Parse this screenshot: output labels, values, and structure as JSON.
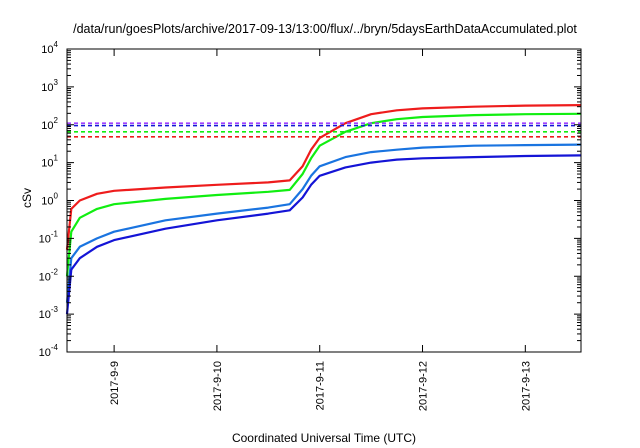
{
  "chart_data": {
    "type": "line",
    "title": "/data/run/goesPlots/archive/2017-09-13/13:00/flux/../bryn/5daysEarthDataAccumulated.plot",
    "xlabel": "Coordinated Universal Time (UTC)",
    "ylabel": "cSv",
    "yscale": "log",
    "ylim": [
      0.0001,
      10000
    ],
    "xlim": [
      "2017-09-08 13:00",
      "2017-09-13 13:00"
    ],
    "x_ticks": [
      "2017-9-9",
      "2017-9-10",
      "2017-9-11",
      "2017-9-12",
      "2017-9-13"
    ],
    "y_ticks": [
      {
        "value": 0.0001,
        "base": "10",
        "exp": "-4"
      },
      {
        "value": 0.001,
        "base": "10",
        "exp": "-3"
      },
      {
        "value": 0.01,
        "base": "10",
        "exp": "-2"
      },
      {
        "value": 0.1,
        "base": "10",
        "exp": "-1"
      },
      {
        "value": 1,
        "base": "10",
        "exp": "0"
      },
      {
        "value": 10,
        "base": "10",
        "exp": "1"
      },
      {
        "value": 100,
        "base": "10",
        "exp": "2"
      },
      {
        "value": 1000,
        "base": "10",
        "exp": "3"
      },
      {
        "value": 10000,
        "base": "10",
        "exp": "4"
      }
    ],
    "grid": false,
    "legend": "none",
    "series": [
      {
        "color": "#ee1c1c",
        "style": "solid",
        "points": [
          [
            "2017-09-08 13:00",
            0.05
          ],
          [
            "2017-09-08 14:00",
            0.6
          ],
          [
            "2017-09-08 16:00",
            1.0
          ],
          [
            "2017-09-08 20:00",
            1.5
          ],
          [
            "2017-09-09 00:00",
            1.8
          ],
          [
            "2017-09-09 12:00",
            2.2
          ],
          [
            "2017-09-10 00:00",
            2.6
          ],
          [
            "2017-09-10 12:00",
            3.0
          ],
          [
            "2017-09-10 17:00",
            3.4
          ],
          [
            "2017-09-10 20:00",
            8.0
          ],
          [
            "2017-09-10 22:00",
            22
          ],
          [
            "2017-09-11 00:00",
            45
          ],
          [
            "2017-09-11 06:00",
            110
          ],
          [
            "2017-09-11 12:00",
            190
          ],
          [
            "2017-09-11 18:00",
            240
          ],
          [
            "2017-09-12 00:00",
            270
          ],
          [
            "2017-09-12 12:00",
            300
          ],
          [
            "2017-09-13 00:00",
            320
          ],
          [
            "2017-09-13 13:00",
            330
          ]
        ]
      },
      {
        "color": "#11ee11",
        "style": "solid",
        "points": [
          [
            "2017-09-08 13:00",
            0.01
          ],
          [
            "2017-09-08 14:00",
            0.15
          ],
          [
            "2017-09-08 16:00",
            0.35
          ],
          [
            "2017-09-08 20:00",
            0.6
          ],
          [
            "2017-09-09 00:00",
            0.8
          ],
          [
            "2017-09-09 12:00",
            1.1
          ],
          [
            "2017-09-10 00:00",
            1.4
          ],
          [
            "2017-09-10 12:00",
            1.7
          ],
          [
            "2017-09-10 17:00",
            1.9
          ],
          [
            "2017-09-10 20:00",
            5.0
          ],
          [
            "2017-09-10 22:00",
            13
          ],
          [
            "2017-09-11 00:00",
            28
          ],
          [
            "2017-09-11 06:00",
            65
          ],
          [
            "2017-09-11 12:00",
            110
          ],
          [
            "2017-09-11 18:00",
            140
          ],
          [
            "2017-09-12 00:00",
            160
          ],
          [
            "2017-09-12 12:00",
            180
          ],
          [
            "2017-09-13 00:00",
            190
          ],
          [
            "2017-09-13 13:00",
            195
          ]
        ]
      },
      {
        "color": "#1a74e0",
        "style": "solid",
        "points": [
          [
            "2017-09-08 13:00",
            0.002
          ],
          [
            "2017-09-08 14:00",
            0.03
          ],
          [
            "2017-09-08 16:00",
            0.06
          ],
          [
            "2017-09-08 20:00",
            0.1
          ],
          [
            "2017-09-09 00:00",
            0.15
          ],
          [
            "2017-09-09 12:00",
            0.3
          ],
          [
            "2017-09-10 00:00",
            0.45
          ],
          [
            "2017-09-10 12:00",
            0.65
          ],
          [
            "2017-09-10 17:00",
            0.8
          ],
          [
            "2017-09-10 20:00",
            2.0
          ],
          [
            "2017-09-10 22:00",
            4.5
          ],
          [
            "2017-09-11 00:00",
            8.0
          ],
          [
            "2017-09-11 06:00",
            14
          ],
          [
            "2017-09-11 12:00",
            19
          ],
          [
            "2017-09-11 18:00",
            22
          ],
          [
            "2017-09-12 00:00",
            25
          ],
          [
            "2017-09-12 12:00",
            28
          ],
          [
            "2017-09-13 00:00",
            29
          ],
          [
            "2017-09-13 13:00",
            30
          ]
        ]
      },
      {
        "color": "#1414d6",
        "style": "solid",
        "points": [
          [
            "2017-09-08 13:00",
            0.001
          ],
          [
            "2017-09-08 14:00",
            0.015
          ],
          [
            "2017-09-08 16:00",
            0.03
          ],
          [
            "2017-09-08 20:00",
            0.06
          ],
          [
            "2017-09-09 00:00",
            0.09
          ],
          [
            "2017-09-09 12:00",
            0.18
          ],
          [
            "2017-09-10 00:00",
            0.3
          ],
          [
            "2017-09-10 12:00",
            0.45
          ],
          [
            "2017-09-10 17:00",
            0.55
          ],
          [
            "2017-09-10 20:00",
            1.2
          ],
          [
            "2017-09-10 22:00",
            2.6
          ],
          [
            "2017-09-11 00:00",
            4.5
          ],
          [
            "2017-09-11 06:00",
            7.5
          ],
          [
            "2017-09-11 12:00",
            10
          ],
          [
            "2017-09-11 18:00",
            12
          ],
          [
            "2017-09-12 00:00",
            13
          ],
          [
            "2017-09-12 12:00",
            14
          ],
          [
            "2017-09-13 00:00",
            15
          ],
          [
            "2017-09-13 13:00",
            15.5
          ]
        ]
      },
      {
        "color": "#a040ff",
        "style": "dashed",
        "points": [
          [
            "2017-09-08 13:00",
            110
          ],
          [
            "2017-09-13 13:00",
            110
          ]
        ]
      },
      {
        "color": "#1414d6",
        "style": "dashed",
        "points": [
          [
            "2017-09-08 13:00",
            95
          ],
          [
            "2017-09-13 13:00",
            95
          ]
        ]
      },
      {
        "color": "#11ee11",
        "style": "dashed",
        "points": [
          [
            "2017-09-08 13:00",
            65
          ],
          [
            "2017-09-13 13:00",
            65
          ]
        ]
      },
      {
        "color": "#ee1c1c",
        "style": "dashed",
        "points": [
          [
            "2017-09-08 13:00",
            48
          ],
          [
            "2017-09-13 13:00",
            48
          ]
        ]
      }
    ]
  }
}
